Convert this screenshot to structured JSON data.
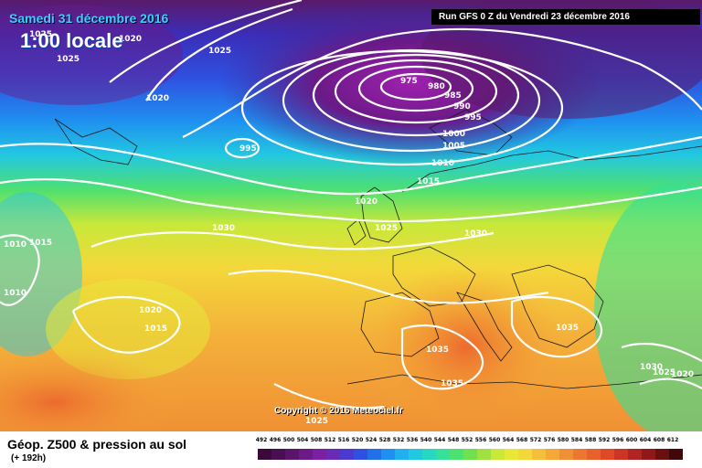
{
  "map": {
    "date_label": "Samedi 31 décembre 2016",
    "time_label": "1:00 locale",
    "run_label": "Run GFS 0 Z du Vendredi 23 décembre 2016",
    "copyright": "Copyright © 2016 Meteociel.fr",
    "isobar_labels": [
      "1025",
      "1020",
      "1025",
      "1025",
      "1020",
      "975",
      "980",
      "985",
      "990",
      "995",
      "1000",
      "1005",
      "1010",
      "1015",
      "995",
      "1020",
      "1025",
      "1030",
      "1030",
      "1015",
      "1010",
      "1010",
      "1020",
      "1015",
      "1035",
      "1035",
      "1035",
      "1030",
      "1025",
      "1020",
      "1025"
    ]
  },
  "footer": {
    "title": "Géop. Z500 & pression au sol",
    "forecast_step": "(+ 192h)"
  },
  "legend": {
    "values": [
      "492",
      "496",
      "500",
      "504",
      "508",
      "512",
      "516",
      "520",
      "524",
      "528",
      "532",
      "536",
      "540",
      "544",
      "548",
      "552",
      "556",
      "560",
      "564",
      "568",
      "572",
      "576",
      "580",
      "584",
      "588",
      "592",
      "596",
      "600",
      "604",
      "608",
      "612"
    ],
    "colors": [
      "#3c0a3a",
      "#4a0f52",
      "#5a146a",
      "#6b1a86",
      "#7a20a0",
      "#6a2ab8",
      "#4a3ad0",
      "#2f50e0",
      "#2270e8",
      "#1f90f0",
      "#20b0f0",
      "#22c8e0",
      "#26d8c0",
      "#36e098",
      "#4ee070",
      "#70e050",
      "#a0e040",
      "#c8e83a",
      "#e8e838",
      "#f4d83a",
      "#f4c03a",
      "#f4a838",
      "#f09034",
      "#ec7830",
      "#e8602c",
      "#e04828",
      "#cc3424",
      "#b02424",
      "#901818",
      "#6a1010",
      "#400808"
    ]
  }
}
